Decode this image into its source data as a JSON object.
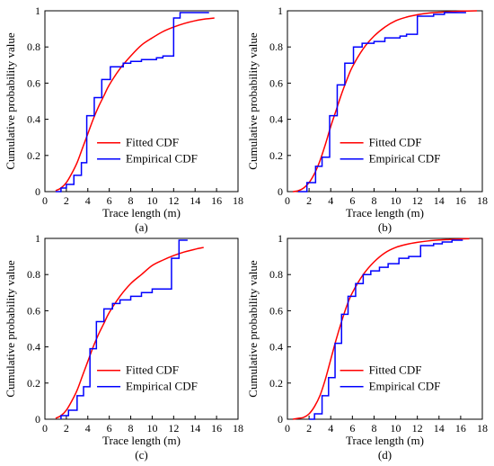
{
  "colors": {
    "fitted": "#ff0000",
    "empirical": "#0000ff",
    "axis": "#000000"
  },
  "chart_data": [
    {
      "type": "line",
      "panel_label": "(a)",
      "xlabel": "Trace length (m)",
      "ylabel": "Cumulative probability value",
      "xlim": [
        0,
        18
      ],
      "ylim": [
        0,
        1
      ],
      "xticks": [
        0,
        2,
        4,
        6,
        8,
        10,
        12,
        14,
        16,
        18
      ],
      "yticks": [
        0,
        0.2,
        0.4,
        0.6,
        0.8,
        1
      ],
      "ytick_labels": [
        "0",
        "0.2",
        "0.4",
        "0.6",
        "0.8",
        "1"
      ],
      "grid": false,
      "legend_position": "lower-right",
      "series": [
        {
          "name": "Fitted CDF",
          "style": "smooth",
          "color": "#ff0000",
          "points": [
            [
              1,
              0.005
            ],
            [
              1.5,
              0.02
            ],
            [
              2,
              0.05
            ],
            [
              2.5,
              0.1
            ],
            [
              3,
              0.16
            ],
            [
              3.5,
              0.24
            ],
            [
              4,
              0.32
            ],
            [
              4.5,
              0.4
            ],
            [
              5,
              0.47
            ],
            [
              5.5,
              0.53
            ],
            [
              6,
              0.59
            ],
            [
              7,
              0.68
            ],
            [
              8,
              0.75
            ],
            [
              9,
              0.81
            ],
            [
              10,
              0.85
            ],
            [
              11,
              0.885
            ],
            [
              12,
              0.91
            ],
            [
              13,
              0.93
            ],
            [
              14,
              0.945
            ],
            [
              15,
              0.955
            ],
            [
              15.8,
              0.96
            ]
          ]
        },
        {
          "name": "Empirical CDF",
          "style": "step",
          "color": "#0000ff",
          "points": [
            [
              1,
              0
            ],
            [
              1.5,
              0
            ],
            [
              1.5,
              0.02
            ],
            [
              2,
              0.02
            ],
            [
              2,
              0.04
            ],
            [
              2.7,
              0.04
            ],
            [
              2.7,
              0.09
            ],
            [
              3.4,
              0.09
            ],
            [
              3.4,
              0.16
            ],
            [
              3.9,
              0.16
            ],
            [
              3.9,
              0.42
            ],
            [
              4.6,
              0.42
            ],
            [
              4.6,
              0.52
            ],
            [
              5.3,
              0.52
            ],
            [
              5.3,
              0.62
            ],
            [
              6.1,
              0.62
            ],
            [
              6.1,
              0.69
            ],
            [
              7.3,
              0.69
            ],
            [
              7.3,
              0.71
            ],
            [
              8,
              0.71
            ],
            [
              8,
              0.72
            ],
            [
              9,
              0.72
            ],
            [
              9,
              0.73
            ],
            [
              10.4,
              0.73
            ],
            [
              10.4,
              0.74
            ],
            [
              11,
              0.74
            ],
            [
              11,
              0.75
            ],
            [
              12,
              0.75
            ],
            [
              12,
              0.96
            ],
            [
              12.6,
              0.96
            ],
            [
              12.6,
              0.99
            ],
            [
              15.3,
              0.99
            ]
          ]
        }
      ]
    },
    {
      "type": "line",
      "panel_label": "(b)",
      "xlabel": "Trace length (m)",
      "ylabel": "Cumulative probability value",
      "xlim": [
        0,
        18
      ],
      "ylim": [
        0,
        1
      ],
      "xticks": [
        0,
        2,
        4,
        6,
        8,
        10,
        12,
        14,
        16,
        18
      ],
      "yticks": [
        0,
        0.2,
        0.4,
        0.6,
        0.8,
        1
      ],
      "ytick_labels": [
        "0",
        "0.2",
        "0.4",
        "0.6",
        "0.8",
        "1"
      ],
      "grid": false,
      "legend_position": "lower-right",
      "series": [
        {
          "name": "Fitted CDF",
          "style": "smooth",
          "color": "#ff0000",
          "points": [
            [
              0.5,
              0
            ],
            [
              1,
              0.005
            ],
            [
              1.5,
              0.02
            ],
            [
              2,
              0.05
            ],
            [
              2.5,
              0.1
            ],
            [
              3,
              0.17
            ],
            [
              3.5,
              0.26
            ],
            [
              4,
              0.36
            ],
            [
              4.5,
              0.45
            ],
            [
              5,
              0.54
            ],
            [
              5.5,
              0.62
            ],
            [
              6,
              0.69
            ],
            [
              7,
              0.79
            ],
            [
              8,
              0.86
            ],
            [
              9,
              0.91
            ],
            [
              10,
              0.945
            ],
            [
              11,
              0.965
            ],
            [
              12,
              0.978
            ],
            [
              13,
              0.987
            ],
            [
              14,
              0.992
            ],
            [
              15,
              0.995
            ],
            [
              16,
              0.998
            ],
            [
              17.5,
              1
            ]
          ]
        },
        {
          "name": "Empirical CDF",
          "style": "step",
          "color": "#0000ff",
          "points": [
            [
              1,
              0
            ],
            [
              1.8,
              0
            ],
            [
              1.8,
              0.05
            ],
            [
              2.6,
              0.05
            ],
            [
              2.6,
              0.14
            ],
            [
              3.2,
              0.14
            ],
            [
              3.2,
              0.19
            ],
            [
              3.9,
              0.19
            ],
            [
              3.9,
              0.42
            ],
            [
              4.6,
              0.42
            ],
            [
              4.6,
              0.59
            ],
            [
              5.3,
              0.59
            ],
            [
              5.3,
              0.71
            ],
            [
              6.1,
              0.71
            ],
            [
              6.1,
              0.8
            ],
            [
              6.9,
              0.8
            ],
            [
              6.9,
              0.82
            ],
            [
              8,
              0.82
            ],
            [
              8,
              0.83
            ],
            [
              9,
              0.83
            ],
            [
              9,
              0.85
            ],
            [
              10.4,
              0.85
            ],
            [
              10.4,
              0.86
            ],
            [
              11,
              0.86
            ],
            [
              11,
              0.87
            ],
            [
              12,
              0.87
            ],
            [
              12,
              0.97
            ],
            [
              13.5,
              0.97
            ],
            [
              13.5,
              0.98
            ],
            [
              14.5,
              0.98
            ],
            [
              14.5,
              0.99
            ],
            [
              16.5,
              0.99
            ]
          ]
        }
      ]
    },
    {
      "type": "line",
      "panel_label": "(c)",
      "xlabel": "Trace length (m)",
      "ylabel": "Cumulative probability value",
      "xlim": [
        0,
        18
      ],
      "ylim": [
        0,
        1
      ],
      "xticks": [
        0,
        2,
        4,
        6,
        8,
        10,
        12,
        14,
        16,
        18
      ],
      "yticks": [
        0,
        0.2,
        0.4,
        0.6,
        0.8,
        1
      ],
      "ytick_labels": [
        "0",
        "0.2",
        "0.4",
        "0.6",
        "0.8",
        "1"
      ],
      "grid": false,
      "legend_position": "lower-right",
      "series": [
        {
          "name": "Fitted CDF",
          "style": "smooth",
          "color": "#ff0000",
          "points": [
            [
              1,
              0.005
            ],
            [
              1.5,
              0.02
            ],
            [
              2,
              0.05
            ],
            [
              2.5,
              0.1
            ],
            [
              3,
              0.16
            ],
            [
              3.5,
              0.24
            ],
            [
              4,
              0.32
            ],
            [
              4.5,
              0.4
            ],
            [
              5,
              0.47
            ],
            [
              5.5,
              0.53
            ],
            [
              6,
              0.59
            ],
            [
              7,
              0.68
            ],
            [
              8,
              0.75
            ],
            [
              9,
              0.8
            ],
            [
              10,
              0.85
            ],
            [
              11,
              0.88
            ],
            [
              12,
              0.905
            ],
            [
              13,
              0.925
            ],
            [
              14,
              0.94
            ],
            [
              14.8,
              0.95
            ]
          ]
        },
        {
          "name": "Empirical CDF",
          "style": "step",
          "color": "#0000ff",
          "points": [
            [
              1.5,
              0
            ],
            [
              1.5,
              0.02
            ],
            [
              2.2,
              0.02
            ],
            [
              2.2,
              0.05
            ],
            [
              3,
              0.05
            ],
            [
              3,
              0.13
            ],
            [
              3.6,
              0.13
            ],
            [
              3.6,
              0.18
            ],
            [
              4.2,
              0.18
            ],
            [
              4.2,
              0.39
            ],
            [
              4.8,
              0.39
            ],
            [
              4.8,
              0.54
            ],
            [
              5.5,
              0.54
            ],
            [
              5.5,
              0.61
            ],
            [
              6.3,
              0.61
            ],
            [
              6.3,
              0.64
            ],
            [
              7,
              0.64
            ],
            [
              7,
              0.66
            ],
            [
              8,
              0.66
            ],
            [
              8,
              0.68
            ],
            [
              9,
              0.68
            ],
            [
              9,
              0.7
            ],
            [
              10,
              0.7
            ],
            [
              10,
              0.72
            ],
            [
              11.8,
              0.72
            ],
            [
              11.8,
              0.89
            ],
            [
              12.5,
              0.89
            ],
            [
              12.5,
              0.99
            ],
            [
              13.3,
              0.99
            ]
          ]
        }
      ]
    },
    {
      "type": "line",
      "panel_label": "(d)",
      "xlabel": "Trace length (m)",
      "ylabel": "Cumulative probability value",
      "xlim": [
        0,
        18
      ],
      "ylim": [
        0,
        1
      ],
      "xticks": [
        0,
        2,
        4,
        6,
        8,
        10,
        12,
        14,
        16,
        18
      ],
      "yticks": [
        0,
        0.2,
        0.4,
        0.6,
        0.8,
        1
      ],
      "ytick_labels": [
        "0",
        "0.2",
        "0.4",
        "0.6",
        "0.8",
        "1"
      ],
      "grid": false,
      "legend_position": "lower-right",
      "series": [
        {
          "name": "Fitted CDF",
          "style": "smooth",
          "color": "#ff0000",
          "points": [
            [
              0.5,
              0
            ],
            [
              1,
              0.005
            ],
            [
              1.5,
              0.01
            ],
            [
              2,
              0.03
            ],
            [
              2.5,
              0.07
            ],
            [
              3,
              0.13
            ],
            [
              3.5,
              0.22
            ],
            [
              4,
              0.33
            ],
            [
              4.5,
              0.44
            ],
            [
              5,
              0.54
            ],
            [
              5.5,
              0.63
            ],
            [
              6,
              0.7
            ],
            [
              7,
              0.8
            ],
            [
              8,
              0.87
            ],
            [
              9,
              0.92
            ],
            [
              10,
              0.95
            ],
            [
              11,
              0.967
            ],
            [
              12,
              0.978
            ],
            [
              13,
              0.986
            ],
            [
              14,
              0.991
            ],
            [
              15,
              0.994
            ],
            [
              16,
              0.997
            ],
            [
              16.8,
              0.998
            ]
          ]
        },
        {
          "name": "Empirical CDF",
          "style": "step",
          "color": "#0000ff",
          "points": [
            [
              2,
              0
            ],
            [
              2.5,
              0
            ],
            [
              2.5,
              0.03
            ],
            [
              3.2,
              0.03
            ],
            [
              3.2,
              0.13
            ],
            [
              3.8,
              0.13
            ],
            [
              3.8,
              0.23
            ],
            [
              4.4,
              0.23
            ],
            [
              4.4,
              0.42
            ],
            [
              5,
              0.42
            ],
            [
              5,
              0.58
            ],
            [
              5.6,
              0.58
            ],
            [
              5.6,
              0.68
            ],
            [
              6.3,
              0.68
            ],
            [
              6.3,
              0.75
            ],
            [
              7,
              0.75
            ],
            [
              7,
              0.8
            ],
            [
              7.7,
              0.8
            ],
            [
              7.7,
              0.82
            ],
            [
              8.5,
              0.82
            ],
            [
              8.5,
              0.84
            ],
            [
              9.3,
              0.84
            ],
            [
              9.3,
              0.86
            ],
            [
              10.3,
              0.86
            ],
            [
              10.3,
              0.89
            ],
            [
              11.2,
              0.89
            ],
            [
              11.2,
              0.9
            ],
            [
              12.3,
              0.9
            ],
            [
              12.3,
              0.96
            ],
            [
              13.5,
              0.96
            ],
            [
              13.5,
              0.97
            ],
            [
              14.3,
              0.97
            ],
            [
              14.3,
              0.98
            ],
            [
              15.2,
              0.98
            ],
            [
              15.2,
              0.99
            ],
            [
              16.2,
              0.99
            ]
          ]
        }
      ]
    }
  ]
}
